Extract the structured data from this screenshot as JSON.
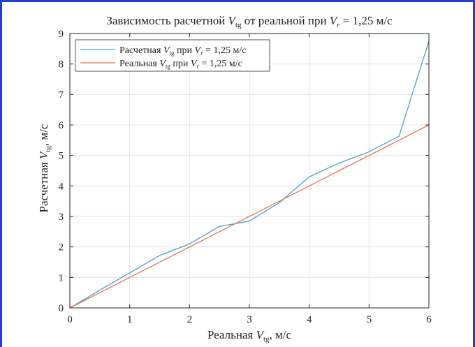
{
  "chart_data": {
    "type": "line",
    "title": {
      "prefix": "Зависимость расчетной ",
      "var": "V",
      "sub": "tg",
      "middle": " от реальной при ",
      "var2": "V",
      "sub2": "r",
      "suffix": " = 1,25 м/с"
    },
    "xlabel": {
      "prefix": "Реальная ",
      "var": "V",
      "sub": "tg",
      "suffix": ", м/с"
    },
    "ylabel": {
      "prefix": "Расчетная ",
      "var": "V",
      "sub": "tg",
      "suffix": ", м/с"
    },
    "xlim": [
      0,
      6
    ],
    "ylim": [
      0,
      9
    ],
    "xticks": [
      "0",
      "1",
      "2",
      "3",
      "4",
      "5",
      "6"
    ],
    "yticks": [
      "0",
      "1",
      "2",
      "3",
      "4",
      "5",
      "6",
      "7",
      "8",
      "9"
    ],
    "grid": true,
    "legend_position": "top-left",
    "series": [
      {
        "name": {
          "prefix": "Расчетная ",
          "var": "V",
          "sub": "tg",
          "middle": " при ",
          "var2": "V",
          "sub2": "r",
          "suffix": " = 1,25 м/с"
        },
        "color": "#4a9fd0",
        "x": [
          0,
          0.5,
          1,
          1.5,
          2,
          2.5,
          3,
          3.5,
          4,
          4.5,
          5,
          5.5,
          6
        ],
        "y": [
          0,
          0.58,
          1.15,
          1.72,
          2.1,
          2.67,
          2.85,
          3.45,
          4.3,
          4.75,
          5.12,
          5.63,
          8.75
        ]
      },
      {
        "name": {
          "prefix": "Реальная ",
          "var": "V",
          "sub": "tg",
          "middle": " при ",
          "var2": "V",
          "sub2": "r",
          "suffix": " = 1,25 м/с"
        },
        "color": "#e07b4f",
        "x": [
          0,
          6
        ],
        "y": [
          0,
          6
        ]
      }
    ]
  }
}
